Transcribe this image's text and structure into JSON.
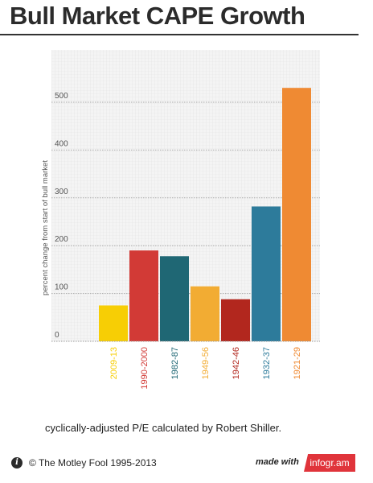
{
  "header": {
    "title": "Bull Market CAPE Growth"
  },
  "chart_data": {
    "type": "bar",
    "title": "Bull Market CAPE Growth",
    "xlabel": "",
    "ylabel": "percent change from start of bull market",
    "ylim": [
      0,
      520
    ],
    "yticks": [
      0,
      100,
      200,
      300,
      400,
      500
    ],
    "grid": true,
    "legend": "none",
    "categories": [
      "2009-13",
      "1990-2000",
      "1982-87",
      "1949-56",
      "1942-46",
      "1932-37",
      "1921-29"
    ],
    "values": [
      75,
      190,
      178,
      115,
      88,
      282,
      530
    ],
    "colors": [
      "#f7ce05",
      "#d23a36",
      "#1f6774",
      "#f2ac33",
      "#b2271e",
      "#2d7b9b",
      "#ef8a33"
    ]
  },
  "caption": "cyclically-adjusted P/E calculated by Robert Shiller.",
  "footer": {
    "info_icon": "info-icon",
    "copyright": "© The Motley Fool 1995-2013",
    "made_with": "made with",
    "brand": "infogr.am"
  }
}
